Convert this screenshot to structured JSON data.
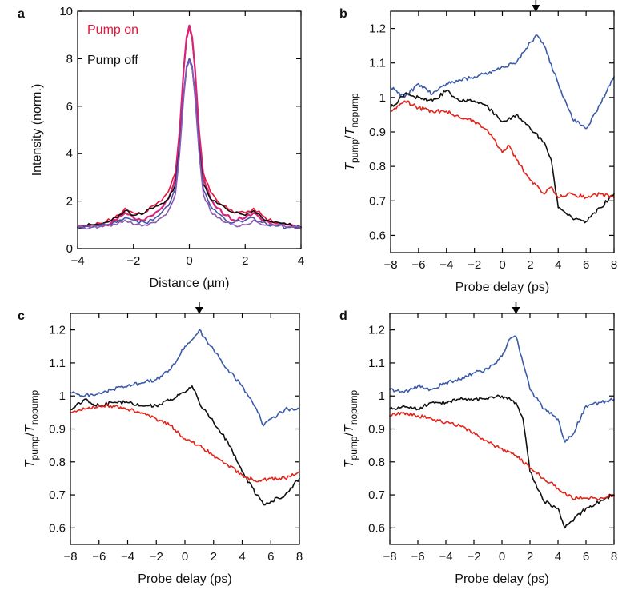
{
  "chart_data": [
    {
      "panel": "a",
      "type": "line",
      "xlabel": "Distance (µm)",
      "ylabel": "Intensity (norm.)",
      "xlim": [
        -4,
        4
      ],
      "ylim": [
        0,
        10
      ],
      "xticks": [
        -4,
        -2,
        0,
        2,
        4
      ],
      "yticks": [
        0,
        2,
        4,
        6,
        8,
        10
      ],
      "legend": {
        "placement": "top-left",
        "entries": [
          {
            "text": "Pump on",
            "color": "#e5143a"
          },
          {
            "text": "Pump off",
            "color": "#111111"
          }
        ]
      },
      "series": [
        {
          "color": "#e5143a",
          "x": [
            -4,
            -3.5,
            -3,
            -2.6,
            -2.3,
            -2.0,
            -1.6,
            -1.3,
            -1.0,
            -0.75,
            -0.5,
            -0.35,
            -0.2,
            -0.1,
            0,
            0.1,
            0.2,
            0.35,
            0.5,
            0.75,
            1.0,
            1.3,
            1.6,
            2.0,
            2.3,
            2.6,
            3.0,
            3.5,
            4
          ],
          "y": [
            0.9,
            1.0,
            1.1,
            1.4,
            1.7,
            1.5,
            1.5,
            1.8,
            2.0,
            2.4,
            3.2,
            5.0,
            7.5,
            8.8,
            9.3,
            8.8,
            7.5,
            5.0,
            3.2,
            2.4,
            2.0,
            1.8,
            1.5,
            1.5,
            1.7,
            1.4,
            1.1,
            1.0,
            0.9
          ]
        },
        {
          "color": "#d6247a",
          "x": [
            -4,
            -3.5,
            -3,
            -2.6,
            -2.3,
            -2.0,
            -1.6,
            -1.3,
            -1.0,
            -0.75,
            -0.5,
            -0.35,
            -0.2,
            -0.1,
            0,
            0.1,
            0.2,
            0.35,
            0.5,
            0.75,
            1.0,
            1.3,
            1.6,
            2.0,
            2.3,
            2.6,
            3.0,
            3.5,
            4
          ],
          "y": [
            0.9,
            1.0,
            1.0,
            1.2,
            1.5,
            1.3,
            1.2,
            1.4,
            1.7,
            2.1,
            3.0,
            4.9,
            7.6,
            8.9,
            9.4,
            8.9,
            7.6,
            4.9,
            3.0,
            2.1,
            1.7,
            1.4,
            1.2,
            1.3,
            1.5,
            1.2,
            1.0,
            1.0,
            0.9
          ]
        },
        {
          "color": "#111111",
          "x": [
            -4,
            -3.5,
            -3,
            -2.6,
            -2.3,
            -2.0,
            -1.6,
            -1.3,
            -1.0,
            -0.75,
            -0.5,
            -0.35,
            -0.2,
            -0.1,
            0,
            0.1,
            0.2,
            0.35,
            0.5,
            0.75,
            1.0,
            1.3,
            1.6,
            2.0,
            2.3,
            2.6,
            3.0,
            3.5,
            4
          ],
          "y": [
            0.9,
            1.0,
            1.1,
            1.3,
            1.6,
            1.4,
            1.5,
            1.7,
            1.9,
            2.1,
            2.7,
            4.3,
            6.5,
            7.6,
            8.0,
            7.6,
            6.5,
            4.3,
            2.7,
            2.1,
            1.9,
            1.7,
            1.5,
            1.4,
            1.6,
            1.3,
            1.1,
            1.0,
            0.9
          ]
        },
        {
          "color": "#4a55a8",
          "x": [
            -4,
            -3.5,
            -3,
            -2.6,
            -2.3,
            -2.0,
            -1.6,
            -1.3,
            -1.0,
            -0.75,
            -0.5,
            -0.35,
            -0.2,
            -0.1,
            0,
            0.1,
            0.2,
            0.35,
            0.5,
            0.75,
            1.0,
            1.3,
            1.6,
            2.0,
            2.3,
            2.6,
            3.0,
            3.5,
            4
          ],
          "y": [
            0.9,
            0.9,
            1.0,
            1.1,
            1.3,
            1.2,
            1.1,
            1.2,
            1.5,
            1.8,
            2.5,
            4.2,
            6.6,
            7.7,
            8.0,
            7.7,
            6.6,
            4.2,
            2.5,
            1.8,
            1.5,
            1.2,
            1.1,
            1.2,
            1.3,
            1.1,
            1.0,
            0.9,
            0.9
          ]
        },
        {
          "color": "#8a5cb3",
          "x": [
            -4,
            -3.5,
            -3,
            -2.6,
            -2.3,
            -2.0,
            -1.6,
            -1.3,
            -1.0,
            -0.75,
            -0.5,
            -0.35,
            -0.2,
            -0.1,
            0,
            0.1,
            0.2,
            0.35,
            0.5,
            0.75,
            1.0,
            1.3,
            1.6,
            2.0,
            2.3,
            2.6,
            3.0,
            3.5,
            4
          ],
          "y": [
            0.9,
            0.9,
            1.0,
            1.0,
            1.2,
            1.0,
            1.0,
            1.1,
            1.3,
            1.6,
            2.3,
            4.0,
            6.4,
            7.6,
            7.9,
            7.6,
            6.4,
            4.0,
            2.3,
            1.6,
            1.3,
            1.1,
            1.0,
            1.0,
            1.2,
            1.0,
            1.0,
            0.9,
            0.9
          ]
        }
      ]
    },
    {
      "panel": "b",
      "type": "line",
      "xlabel": "Probe delay (ps)",
      "ylabel": "T_pump/T_nopump",
      "xlim": [
        -8,
        8
      ],
      "ylim": [
        0.55,
        1.25
      ],
      "xticks": [
        -8,
        -6,
        -4,
        -2,
        0,
        2,
        4,
        6,
        8
      ],
      "yticks": [
        0.6,
        0.7,
        0.8,
        0.9,
        1.0,
        1.1,
        1.2
      ],
      "arrow_x": 2.4,
      "series": [
        {
          "color": "#3b5ba8",
          "x": [
            -8,
            -7,
            -6,
            -5,
            -4,
            -3,
            -2,
            -1,
            0,
            1,
            2,
            2.5,
            3,
            4,
            5,
            6,
            7,
            8
          ],
          "y": [
            1.03,
            1.0,
            1.04,
            1.01,
            1.04,
            1.05,
            1.06,
            1.07,
            1.09,
            1.1,
            1.16,
            1.18,
            1.15,
            1.04,
            0.94,
            0.91,
            0.98,
            1.06
          ]
        },
        {
          "color": "#111111",
          "x": [
            -8,
            -7,
            -6,
            -5,
            -4,
            -3,
            -2,
            -1,
            0,
            1,
            2,
            3,
            3.5,
            4,
            5,
            6,
            7,
            8
          ],
          "y": [
            0.97,
            1.01,
            1.0,
            0.99,
            1.02,
            0.99,
            0.99,
            0.97,
            0.93,
            0.95,
            0.91,
            0.87,
            0.82,
            0.68,
            0.65,
            0.64,
            0.68,
            0.72
          ]
        },
        {
          "color": "#e1251b",
          "x": [
            -8,
            -7,
            -6,
            -5,
            -4,
            -3,
            -2,
            -1,
            0,
            0.5,
            1,
            2,
            3,
            3.5,
            4,
            5,
            6,
            7,
            8
          ],
          "y": [
            0.96,
            0.99,
            0.97,
            0.96,
            0.96,
            0.94,
            0.93,
            0.9,
            0.84,
            0.86,
            0.82,
            0.76,
            0.72,
            0.74,
            0.71,
            0.72,
            0.71,
            0.72,
            0.71
          ]
        }
      ]
    },
    {
      "panel": "c",
      "type": "line",
      "xlabel": "Probe delay (ps)",
      "ylabel": "T_pump/T_nopump",
      "xlim": [
        -8,
        8
      ],
      "ylim": [
        0.55,
        1.25
      ],
      "xticks": [
        -8,
        -6,
        -4,
        -2,
        0,
        2,
        4,
        6,
        8
      ],
      "yticks": [
        0.6,
        0.7,
        0.8,
        0.9,
        1.0,
        1.1,
        1.2
      ],
      "arrow_x": 1.0,
      "series": [
        {
          "color": "#3b5ba8",
          "x": [
            -8,
            -7,
            -6,
            -5,
            -4,
            -3,
            -2,
            -1,
            0,
            0.5,
            1,
            2,
            3,
            4,
            5,
            5.5,
            6,
            7,
            8
          ],
          "y": [
            1.01,
            1.0,
            1.01,
            1.02,
            1.03,
            1.04,
            1.05,
            1.08,
            1.15,
            1.17,
            1.2,
            1.14,
            1.08,
            1.03,
            0.96,
            0.91,
            0.93,
            0.96,
            0.96
          ]
        },
        {
          "color": "#111111",
          "x": [
            -8,
            -7,
            -6,
            -5,
            -4,
            -3,
            -2,
            -1,
            0,
            0.5,
            1,
            2,
            3,
            4,
            5,
            5.5,
            6,
            7,
            8
          ],
          "y": [
            0.96,
            0.99,
            0.97,
            0.98,
            0.98,
            0.97,
            0.97,
            0.99,
            1.01,
            1.03,
            0.98,
            0.92,
            0.86,
            0.77,
            0.7,
            0.67,
            0.68,
            0.7,
            0.75
          ]
        },
        {
          "color": "#e1251b",
          "x": [
            -8,
            -7,
            -6,
            -5,
            -4,
            -3,
            -2,
            -1,
            0,
            1,
            2,
            3,
            4,
            5,
            6,
            7,
            8
          ],
          "y": [
            0.95,
            0.96,
            0.97,
            0.97,
            0.96,
            0.95,
            0.93,
            0.91,
            0.87,
            0.85,
            0.82,
            0.79,
            0.76,
            0.74,
            0.75,
            0.75,
            0.77
          ]
        }
      ]
    },
    {
      "panel": "d",
      "type": "line",
      "xlabel": "Probe delay (ps)",
      "ylabel": "T_pump/T_nopump",
      "xlim": [
        -8,
        8
      ],
      "ylim": [
        0.55,
        1.25
      ],
      "xticks": [
        -8,
        -6,
        -4,
        -2,
        0,
        2,
        4,
        6,
        8
      ],
      "yticks": [
        0.6,
        0.7,
        0.8,
        0.9,
        1.0,
        1.1,
        1.2
      ],
      "arrow_x": 1.0,
      "series": [
        {
          "color": "#3b5ba8",
          "x": [
            -8,
            -7,
            -6,
            -5,
            -4,
            -3,
            -2,
            -1,
            0,
            0.5,
            1,
            1.5,
            2,
            3,
            4,
            4.5,
            5,
            6,
            7,
            8
          ],
          "y": [
            1.02,
            1.01,
            1.03,
            1.02,
            1.04,
            1.05,
            1.07,
            1.08,
            1.12,
            1.17,
            1.18,
            1.1,
            1.02,
            0.96,
            0.93,
            0.86,
            0.88,
            0.97,
            0.98,
            0.99
          ]
        },
        {
          "color": "#111111",
          "x": [
            -8,
            -7,
            -6,
            -5,
            -4,
            -3,
            -2,
            -1,
            0,
            1,
            1.5,
            2,
            3,
            4,
            4.5,
            5,
            6,
            7,
            8
          ],
          "y": [
            0.96,
            0.97,
            0.96,
            0.98,
            0.98,
            0.99,
            0.99,
            0.99,
            1.0,
            0.98,
            0.93,
            0.77,
            0.68,
            0.66,
            0.6,
            0.62,
            0.66,
            0.68,
            0.7
          ]
        },
        {
          "color": "#e1251b",
          "x": [
            -8,
            -7,
            -6,
            -5,
            -4,
            -3,
            -2,
            -1,
            0,
            1,
            2,
            3,
            4,
            5,
            6,
            7,
            8
          ],
          "y": [
            0.94,
            0.95,
            0.94,
            0.93,
            0.92,
            0.91,
            0.89,
            0.86,
            0.84,
            0.82,
            0.78,
            0.75,
            0.72,
            0.69,
            0.69,
            0.69,
            0.7
          ]
        }
      ]
    }
  ]
}
